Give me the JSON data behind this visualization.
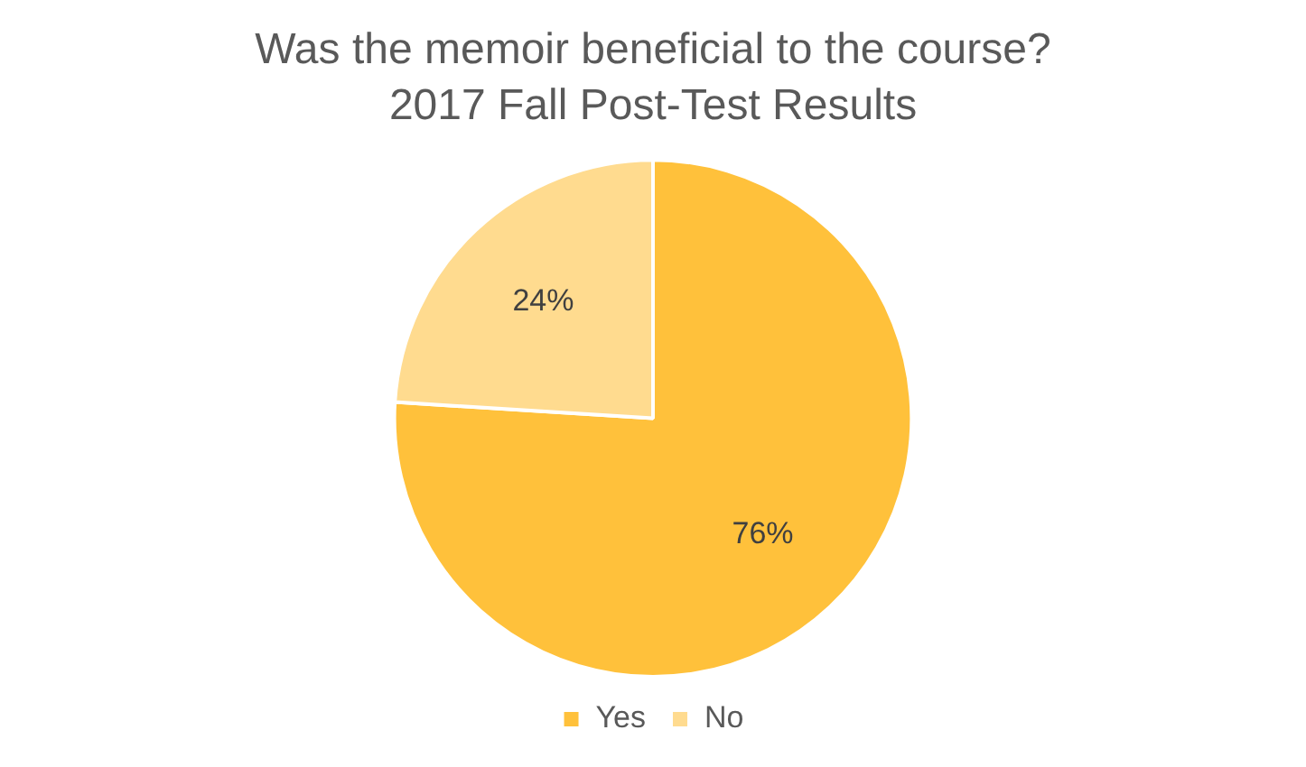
{
  "chart_data": {
    "type": "pie",
    "title": "Was the memoir beneficial to the course?",
    "subtitle": "2017 Fall Post-Test Results",
    "categories": [
      "Yes",
      "No"
    ],
    "values": [
      76,
      24
    ],
    "colors": [
      "#ffc13b",
      "#ffdb8f"
    ],
    "value_labels": [
      "76%",
      "24%"
    ],
    "legend": "bottom"
  }
}
